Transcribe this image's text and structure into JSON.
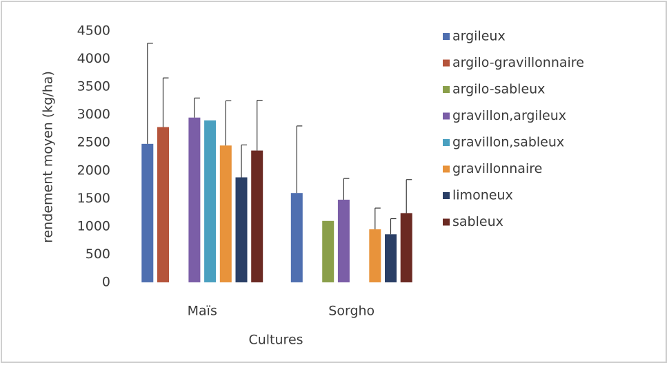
{
  "chart_data": {
    "type": "bar",
    "y_label": "rendement moyen (kg/ha)",
    "x_label": "Cultures",
    "categories": [
      "Maïs",
      "Sorgho"
    ],
    "series": [
      {
        "name": "argileux",
        "color": "#4f6fb0",
        "values": [
          2480,
          1600
        ],
        "errors": [
          1800,
          1200
        ]
      },
      {
        "name": "argilo-gravillonnaire",
        "color": "#b5543b",
        "values": [
          2780,
          null
        ],
        "errors": [
          880,
          null
        ]
      },
      {
        "name": "argilo-sableux",
        "color": "#8a9f4a",
        "values": [
          null,
          1100
        ],
        "errors": [
          null,
          null
        ]
      },
      {
        "name": "gravillon,argileux",
        "color": "#7b5ea7",
        "values": [
          2950,
          1480
        ],
        "errors": [
          350,
          380
        ]
      },
      {
        "name": "gravillon,sableux",
        "color": "#4aa0c0",
        "values": [
          2900,
          null
        ],
        "errors": [
          null,
          null
        ]
      },
      {
        "name": "gravillonnaire",
        "color": "#e8933b",
        "values": [
          2450,
          950
        ],
        "errors": [
          800,
          380
        ]
      },
      {
        "name": "limoneux",
        "color": "#2a3f66",
        "values": [
          1880,
          860
        ],
        "errors": [
          580,
          280
        ]
      },
      {
        "name": "sableux",
        "color": "#6b2a23",
        "values": [
          2360,
          1240
        ],
        "errors": [
          900,
          600
        ]
      }
    ],
    "ylim": [
      0,
      4500
    ],
    "yticks": [
      0,
      500,
      1000,
      1500,
      2000,
      2500,
      3000,
      3500,
      4000,
      4500
    ],
    "legend": "right"
  }
}
